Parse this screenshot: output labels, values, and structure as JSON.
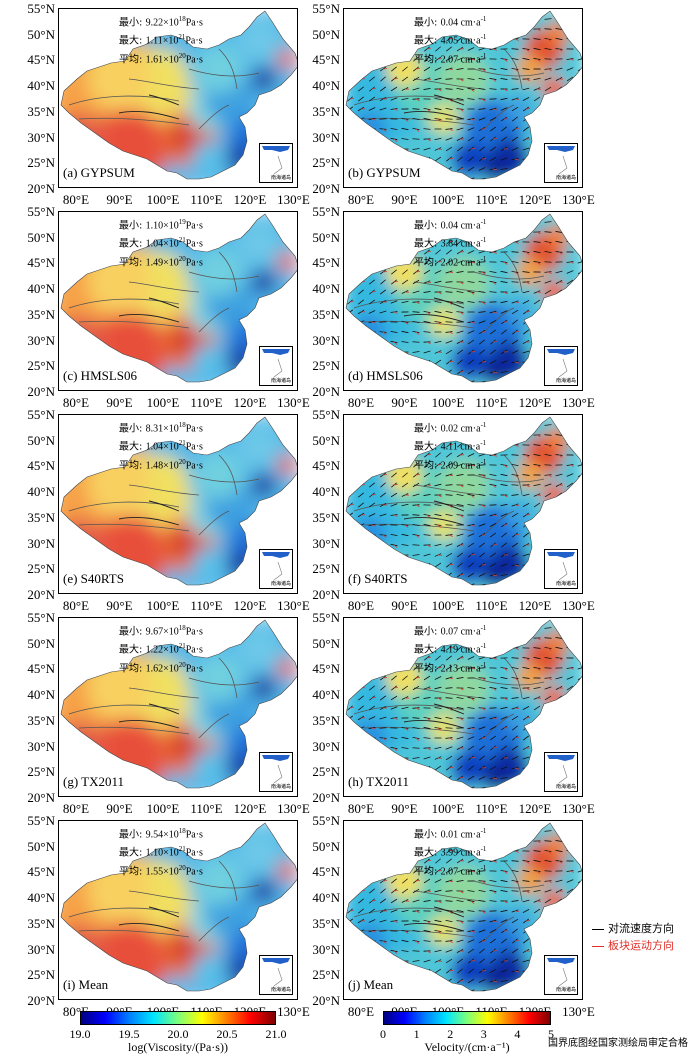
{
  "lat_labels": [
    "55°N",
    "50°N",
    "45°N",
    "40°N",
    "35°N",
    "30°N",
    "25°N",
    "20°N"
  ],
  "lon_labels": [
    "80°E",
    "90°E",
    "100°E",
    "110°E",
    "120°E",
    "130°E"
  ],
  "stat_keys": {
    "min": "最小:",
    "max": "最大:",
    "avg": "平均:"
  },
  "inset_caption": "南海诸岛",
  "panels": [
    {
      "label": "(a) GYPSUM",
      "type": "viscosity",
      "min": "9.22×10",
      "min_exp": "18",
      "max": "1.11×10",
      "max_exp": "21",
      "avg": "1.61×10",
      "avg_exp": "20",
      "unit": "Pa·s"
    },
    {
      "label": "(b) GYPSUM",
      "type": "velocity",
      "min": "0.04",
      "max": "4.05",
      "avg": "2.07",
      "unit": "cm·a",
      "unit_exp": "-1"
    },
    {
      "label": "(c) HMSLS06",
      "type": "viscosity",
      "min": "1.10×10",
      "min_exp": "19",
      "max": "1.04×10",
      "max_exp": "21",
      "avg": "1.49×10",
      "avg_exp": "20",
      "unit": "Pa·s"
    },
    {
      "label": "(d) HMSLS06",
      "type": "velocity",
      "min": "0.04",
      "max": "3.84",
      "avg": "2.02",
      "unit": "cm·a",
      "unit_exp": "-1"
    },
    {
      "label": "(e) S40RTS",
      "type": "viscosity",
      "min": "8.31×10",
      "min_exp": "18",
      "max": "1.04×10",
      "max_exp": "21",
      "avg": "1.48×10",
      "avg_exp": "20",
      "unit": "Pa·s"
    },
    {
      "label": "(f) S40RTS",
      "type": "velocity",
      "min": "0.02",
      "max": "4.11",
      "avg": "2.09",
      "unit": "cm·a",
      "unit_exp": "-1"
    },
    {
      "label": "(g) TX2011",
      "type": "viscosity",
      "min": "9.67×10",
      "min_exp": "18",
      "max": "1.22×10",
      "max_exp": "21",
      "avg": "1.62×10",
      "avg_exp": "20",
      "unit": "Pa·s"
    },
    {
      "label": "(h) TX2011",
      "type": "velocity",
      "min": "0.07",
      "max": "4.19",
      "avg": "2.13",
      "unit": "cm·a",
      "unit_exp": "-1"
    },
    {
      "label": "(i) Mean",
      "type": "viscosity",
      "min": "9.54×10",
      "min_exp": "18",
      "max": "1.10×10",
      "max_exp": "21",
      "avg": "1.55×10",
      "avg_exp": "20",
      "unit": "Pa·s"
    },
    {
      "label": "(j) Mean",
      "type": "velocity",
      "min": "0.01",
      "max": "3.99",
      "avg": "2.07",
      "unit": "cm·a",
      "unit_exp": "-1"
    }
  ],
  "colorbars": {
    "viscosity": {
      "ticks": [
        "19.0",
        "19.5",
        "20.0",
        "20.5",
        "21.0"
      ],
      "title": "log(Viscosity/(Pa·s))"
    },
    "velocity": {
      "ticks": [
        "0",
        "1",
        "2",
        "3",
        "4",
        "5"
      ],
      "title": "Velocity/(cm·a⁻¹)"
    }
  },
  "legend": {
    "convection": {
      "label": "对流速度方向",
      "color": "#000000"
    },
    "plate": {
      "label": "板块运动方向",
      "color": "#e0302a"
    }
  },
  "footer": "国界底图经国家测绘局审定合格",
  "colors": {
    "jet_dark_blue": "#00007f",
    "jet_cyan": "#33c9e6",
    "jet_yellow": "#f3e34a",
    "jet_red": "#c8201f"
  }
}
